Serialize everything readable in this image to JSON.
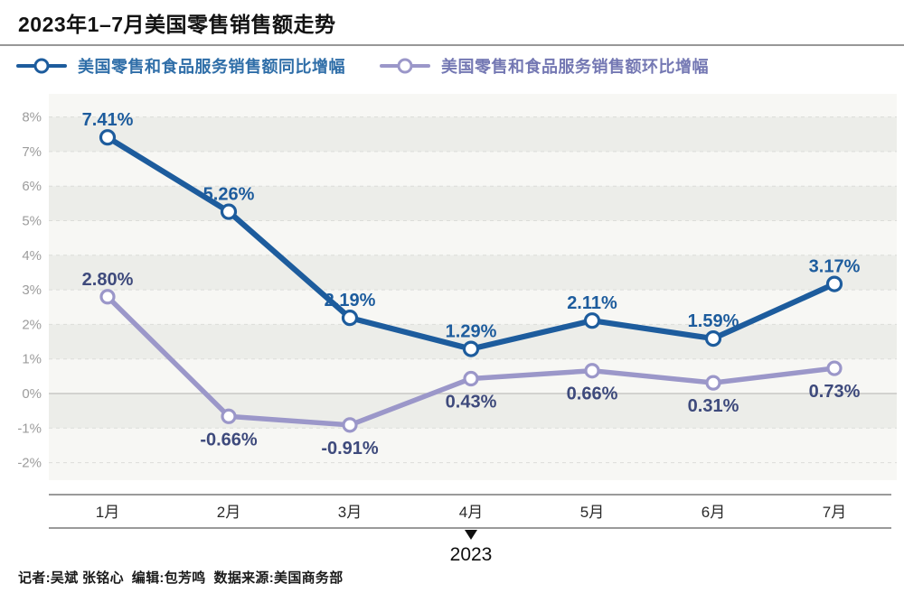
{
  "header": {
    "title": "2023年1–7月美国零售销售额走势"
  },
  "legend": [
    {
      "label": "美国零售和食品服务销售额同比增幅",
      "marker_color": "#1D5C9D",
      "text_color": "#2F6EA8"
    },
    {
      "label": "美国零售和食品服务销售额环比增幅",
      "marker_color": "#9B97C9",
      "text_color": "#7478B3"
    }
  ],
  "chart_data": {
    "type": "line",
    "categories": [
      "1月",
      "2月",
      "3月",
      "4月",
      "5月",
      "6月",
      "7月"
    ],
    "series": [
      {
        "name": "美国零售和食品服务销售额同比增幅",
        "values": [
          7.41,
          5.26,
          2.19,
          1.29,
          2.11,
          1.59,
          3.17
        ],
        "color": "#1D5C9D",
        "label_color": "#1D5C9D",
        "label_positions": [
          "above",
          "above",
          "above",
          "above",
          "above",
          "above",
          "above"
        ]
      },
      {
        "name": "美国零售和食品服务销售额环比增幅",
        "values": [
          2.8,
          -0.66,
          -0.91,
          0.43,
          0.66,
          0.31,
          0.73
        ],
        "color": "#9B97C9",
        "label_color": "#3E4A7C",
        "label_positions": [
          "above",
          "below",
          "below",
          "below",
          "below",
          "below",
          "below"
        ]
      }
    ],
    "value_suffix": "%",
    "value_decimals": 2,
    "yticks": [
      8,
      7,
      6,
      5,
      4,
      3,
      2,
      1,
      0,
      -1,
      -2
    ],
    "ytick_suffix": "%",
    "ylim": [
      -2,
      8
    ],
    "grid": true,
    "banded_rows": true,
    "legend_position": "top",
    "x_axis_year": "2023",
    "year_marker_index": 3
  },
  "footer": {
    "credits": "记者:吴斌 张铭心  编辑:包芳鸣  数据来源:美国商务部"
  }
}
